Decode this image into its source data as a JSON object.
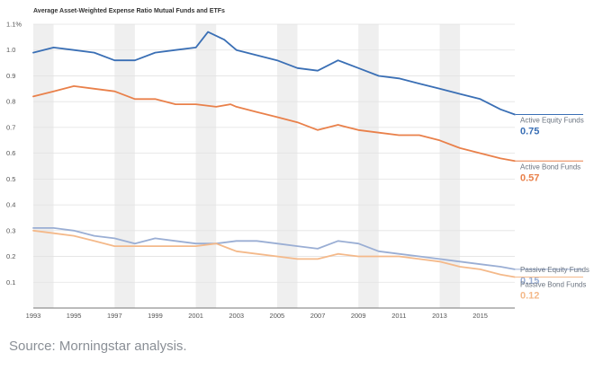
{
  "chart_data": {
    "type": "line",
    "title": "Average Asset-Weighted Expense Ratio Mutual Funds and ETFs",
    "xlabel": "",
    "ylabel": "",
    "xlim": [
      1993,
      2016.7
    ],
    "ylim": [
      0,
      1.1
    ],
    "x_ticks": [
      "1993",
      "1995",
      "1997",
      "1999",
      "2001",
      "2003",
      "2005",
      "2007",
      "2009",
      "2011",
      "2013",
      "2015"
    ],
    "y_ticks": [
      {
        "value": 1.1,
        "label": "1.1%"
      },
      {
        "value": 1.0,
        "label": "1.0"
      },
      {
        "value": 0.9,
        "label": "0.9"
      },
      {
        "value": 0.8,
        "label": "0.8"
      },
      {
        "value": 0.7,
        "label": "0.7"
      },
      {
        "value": 0.6,
        "label": "0.6"
      },
      {
        "value": 0.5,
        "label": "0.5"
      },
      {
        "value": 0.4,
        "label": "0.4"
      },
      {
        "value": 0.3,
        "label": "0.3"
      },
      {
        "value": 0.2,
        "label": "0.2"
      },
      {
        "value": 0.1,
        "label": "0.1"
      }
    ],
    "shaded_x_bands": [
      [
        1993,
        1994
      ],
      [
        1997,
        1998
      ],
      [
        2001,
        2002
      ],
      [
        2005,
        2006
      ],
      [
        2009,
        2010
      ],
      [
        2013,
        2014
      ]
    ],
    "grid": true,
    "series": [
      {
        "name": "Active Equity Funds",
        "end_value": "0.75",
        "color": "#3a6fb5",
        "points": [
          [
            1993,
            0.99
          ],
          [
            1994,
            1.01
          ],
          [
            1995,
            1.0
          ],
          [
            1996,
            0.99
          ],
          [
            1997,
            0.96
          ],
          [
            1998,
            0.96
          ],
          [
            1999,
            0.99
          ],
          [
            2000,
            1.0
          ],
          [
            2001,
            1.01
          ],
          [
            2001.6,
            1.07
          ],
          [
            2002.4,
            1.04
          ],
          [
            2003,
            1.0
          ],
          [
            2004,
            0.98
          ],
          [
            2005,
            0.96
          ],
          [
            2006,
            0.93
          ],
          [
            2007,
            0.92
          ],
          [
            2008,
            0.96
          ],
          [
            2009,
            0.93
          ],
          [
            2010,
            0.9
          ],
          [
            2011,
            0.89
          ],
          [
            2012,
            0.87
          ],
          [
            2013,
            0.85
          ],
          [
            2014,
            0.83
          ],
          [
            2015,
            0.81
          ],
          [
            2016,
            0.77
          ],
          [
            2016.7,
            0.75
          ]
        ]
      },
      {
        "name": "Active Bond Funds",
        "end_value": "0.57",
        "color": "#e9804a",
        "points": [
          [
            1993,
            0.82
          ],
          [
            1994,
            0.84
          ],
          [
            1995,
            0.86
          ],
          [
            1996,
            0.85
          ],
          [
            1997,
            0.84
          ],
          [
            1998,
            0.81
          ],
          [
            1999,
            0.81
          ],
          [
            2000,
            0.79
          ],
          [
            2001,
            0.79
          ],
          [
            2002,
            0.78
          ],
          [
            2002.7,
            0.79
          ],
          [
            2003,
            0.78
          ],
          [
            2004,
            0.76
          ],
          [
            2005,
            0.74
          ],
          [
            2006,
            0.72
          ],
          [
            2007,
            0.69
          ],
          [
            2008,
            0.71
          ],
          [
            2009,
            0.69
          ],
          [
            2010,
            0.68
          ],
          [
            2011,
            0.67
          ],
          [
            2012,
            0.67
          ],
          [
            2013,
            0.65
          ],
          [
            2014,
            0.62
          ],
          [
            2015,
            0.6
          ],
          [
            2016,
            0.58
          ],
          [
            2016.7,
            0.57
          ]
        ]
      },
      {
        "name": "Passive Equity Funds",
        "end_value": "0.15",
        "color": "#9aaed4",
        "points": [
          [
            1993,
            0.31
          ],
          [
            1994,
            0.31
          ],
          [
            1995,
            0.3
          ],
          [
            1996,
            0.28
          ],
          [
            1997,
            0.27
          ],
          [
            1998,
            0.25
          ],
          [
            1999,
            0.27
          ],
          [
            2000,
            0.26
          ],
          [
            2001,
            0.25
          ],
          [
            2002,
            0.25
          ],
          [
            2003,
            0.26
          ],
          [
            2004,
            0.26
          ],
          [
            2005,
            0.25
          ],
          [
            2006,
            0.24
          ],
          [
            2007,
            0.23
          ],
          [
            2008,
            0.26
          ],
          [
            2009,
            0.25
          ],
          [
            2010,
            0.22
          ],
          [
            2011,
            0.21
          ],
          [
            2012,
            0.2
          ],
          [
            2013,
            0.19
          ],
          [
            2014,
            0.18
          ],
          [
            2015,
            0.17
          ],
          [
            2016,
            0.16
          ],
          [
            2016.7,
            0.15
          ]
        ]
      },
      {
        "name": "Passive Bond Funds",
        "end_value": "0.12",
        "color": "#f4b98a",
        "points": [
          [
            1993,
            0.3
          ],
          [
            1994,
            0.29
          ],
          [
            1995,
            0.28
          ],
          [
            1996,
            0.26
          ],
          [
            1997,
            0.24
          ],
          [
            1998,
            0.24
          ],
          [
            1999,
            0.24
          ],
          [
            2000,
            0.24
          ],
          [
            2001,
            0.24
          ],
          [
            2002,
            0.25
          ],
          [
            2003,
            0.22
          ],
          [
            2004,
            0.21
          ],
          [
            2005,
            0.2
          ],
          [
            2006,
            0.19
          ],
          [
            2007,
            0.19
          ],
          [
            2008,
            0.21
          ],
          [
            2009,
            0.2
          ],
          [
            2010,
            0.2
          ],
          [
            2011,
            0.2
          ],
          [
            2012,
            0.19
          ],
          [
            2013,
            0.18
          ],
          [
            2014,
            0.16
          ],
          [
            2015,
            0.15
          ],
          [
            2016,
            0.13
          ],
          [
            2016.7,
            0.12
          ]
        ]
      }
    ]
  },
  "source_note": "Source: Morningstar analysis."
}
